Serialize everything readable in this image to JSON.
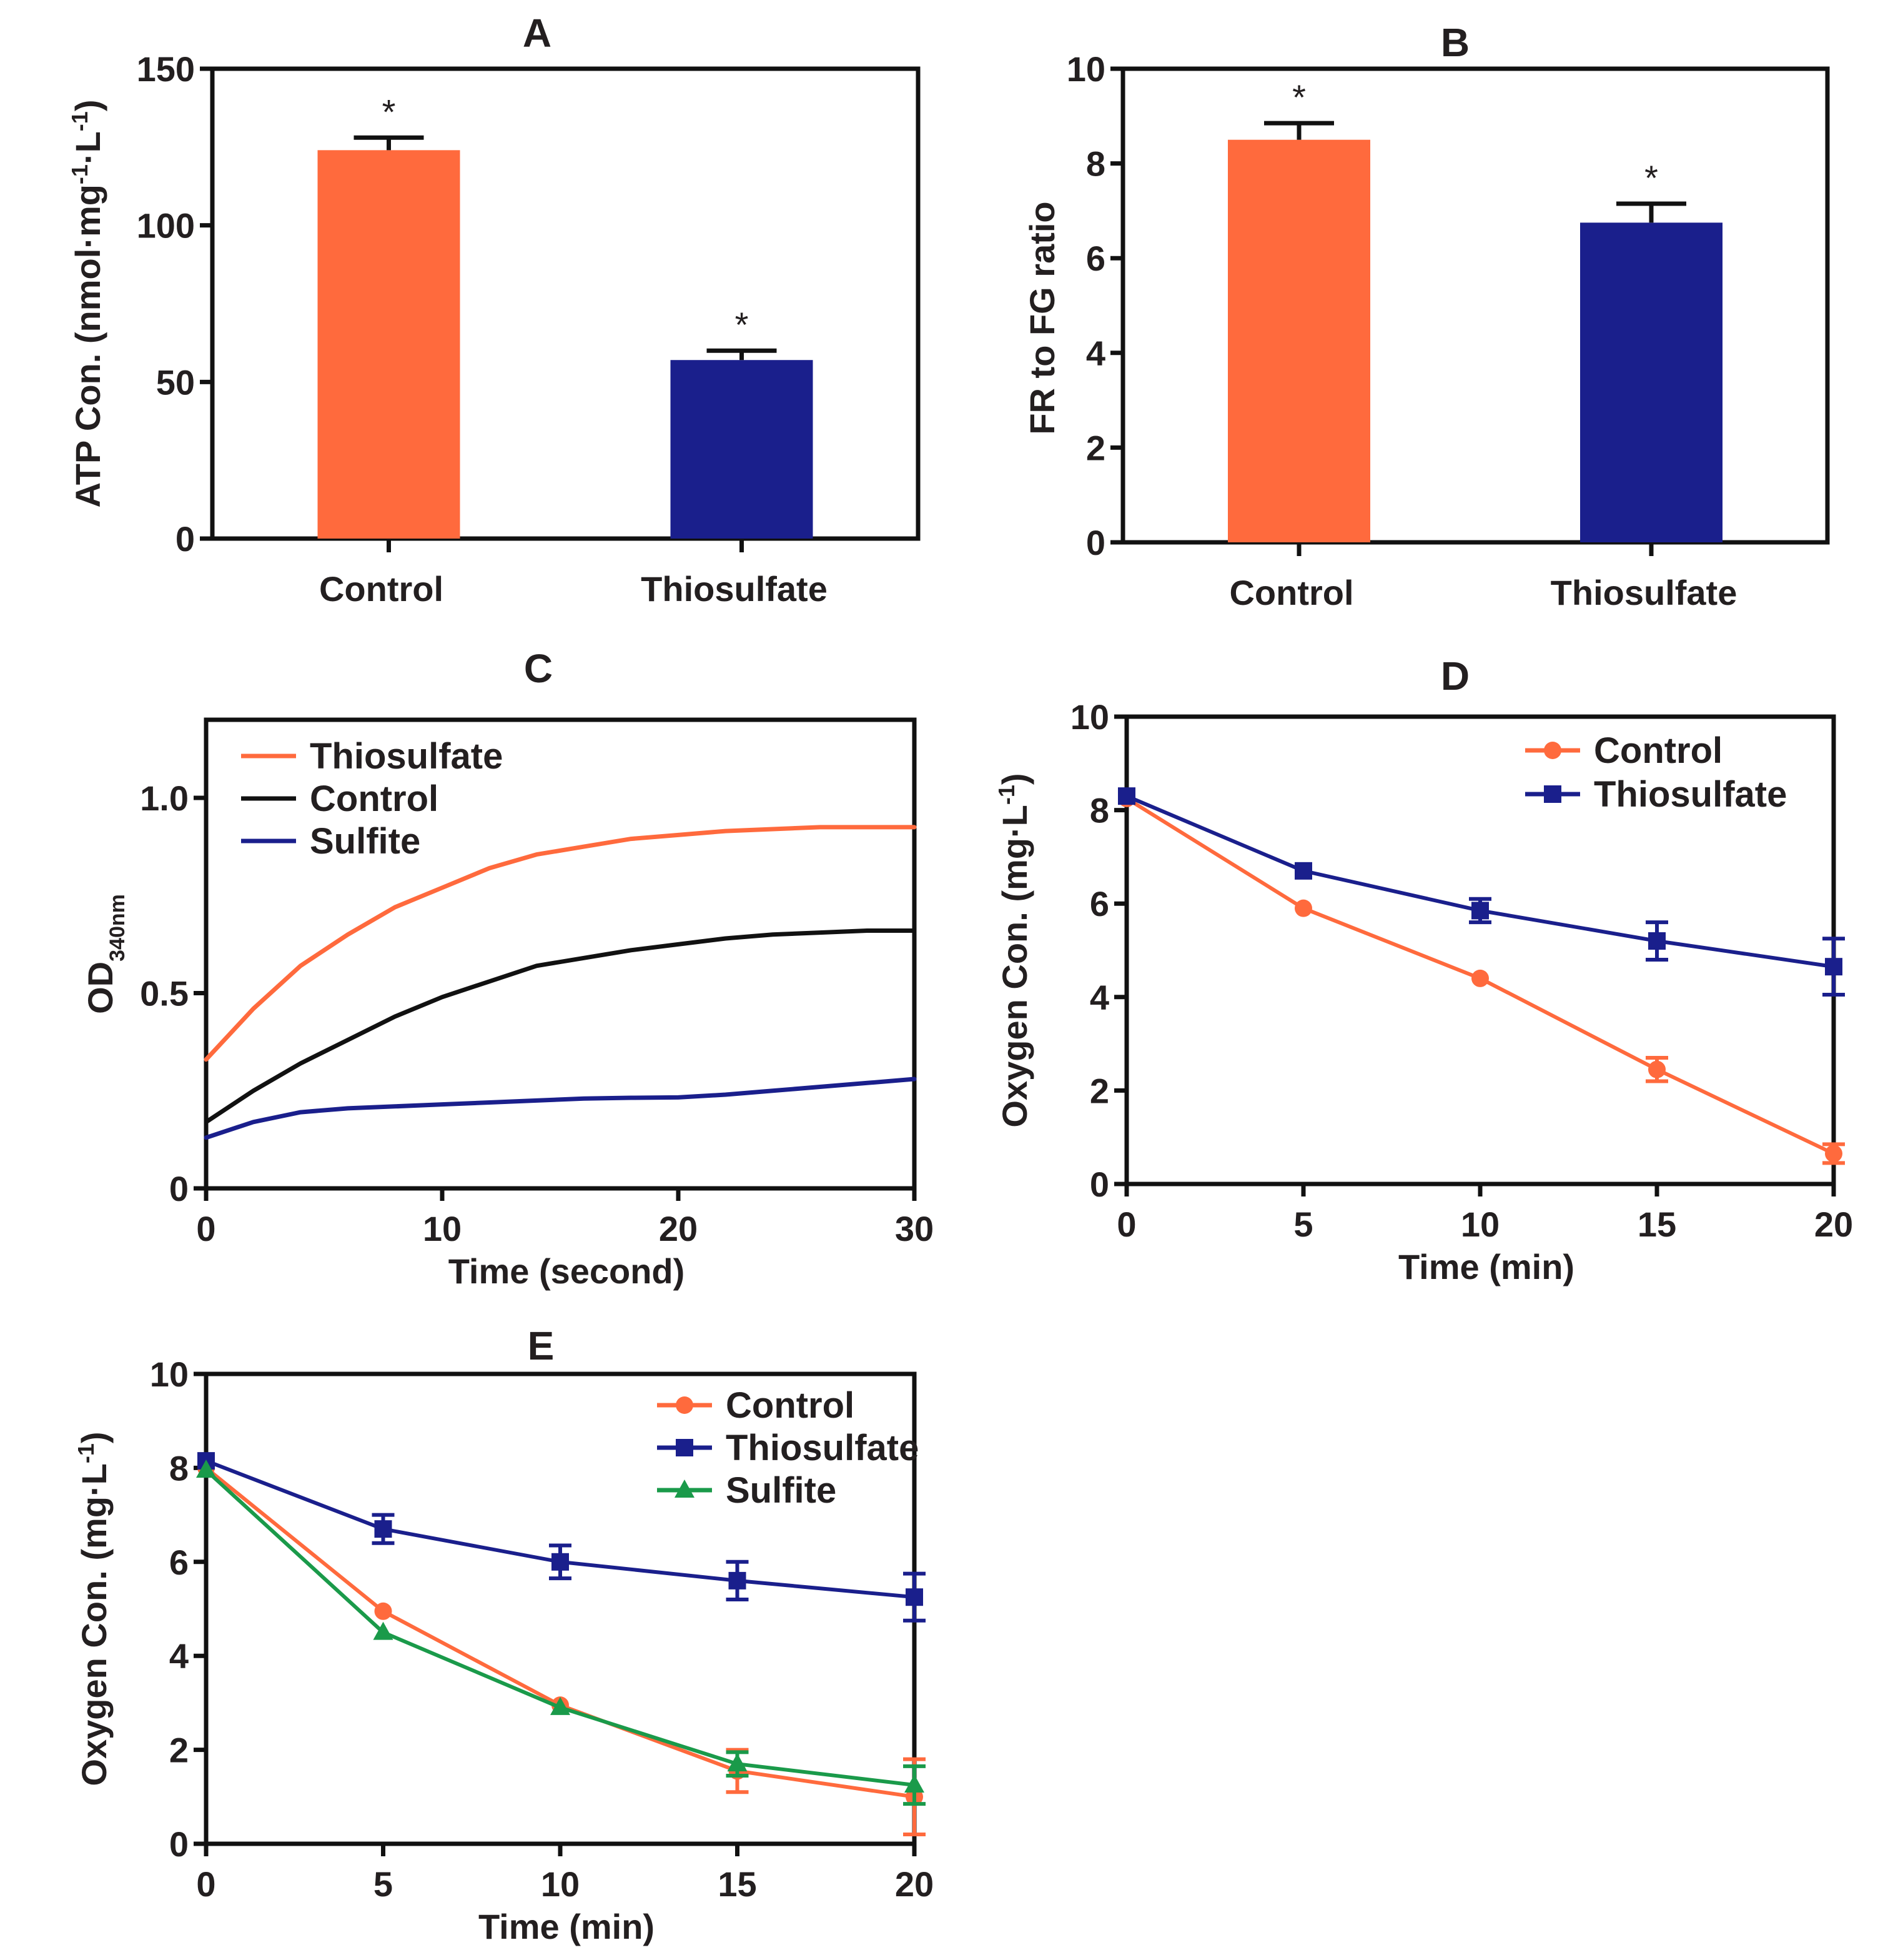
{
  "colors": {
    "control_orange": "#ff6a3d",
    "thiosulfate_blue": "#1a1f8c",
    "sulfite_green": "#1a9a4a",
    "control_black": "#111111",
    "axis": "#111111"
  },
  "chart_data": [
    {
      "id": "A",
      "type": "bar",
      "title": "A",
      "categories": [
        "Control",
        "Thiosulfate"
      ],
      "values": [
        124,
        57
      ],
      "errors": [
        4,
        3
      ],
      "significance": [
        "*",
        "*"
      ],
      "bar_colors": [
        "#ff6a3d",
        "#1a1f8c"
      ],
      "ylabel_parts": [
        "ATP Con. (nmol·mg",
        "-1",
        "·L",
        "-1",
        ")"
      ],
      "ylim": [
        0,
        150
      ],
      "yticks": [
        0,
        50,
        100,
        150
      ],
      "ytick_labels": [
        "0",
        "50",
        "100",
        "150"
      ]
    },
    {
      "id": "B",
      "type": "bar",
      "title": "B",
      "categories": [
        "Control",
        "Thiosulfate"
      ],
      "values": [
        8.5,
        6.75
      ],
      "errors": [
        0.35,
        0.4
      ],
      "significance": [
        "*",
        "*"
      ],
      "bar_colors": [
        "#ff6a3d",
        "#1a1f8c"
      ],
      "ylabel": "FR to FG ratio",
      "ylim": [
        0,
        10
      ],
      "yticks": [
        0,
        2,
        4,
        6,
        8,
        10
      ],
      "ytick_labels": [
        "0",
        "2",
        "4",
        "6",
        "8",
        "10"
      ]
    },
    {
      "id": "C",
      "type": "line",
      "title": "C",
      "xlabel": "Time (second)",
      "ylabel_main": "OD",
      "ylabel_sub": "340nm",
      "xlim": [
        0,
        30
      ],
      "ylim": [
        0,
        1.2
      ],
      "xticks": [
        0,
        10,
        20,
        30
      ],
      "xtick_labels": [
        "0",
        "10",
        "20",
        "30"
      ],
      "yticks": [
        0,
        0.5,
        1.0
      ],
      "ytick_labels": [
        "0",
        "0.5",
        "1.0"
      ],
      "x": [
        0,
        2,
        4,
        6,
        8,
        10,
        12,
        14,
        16,
        18,
        20,
        22,
        24,
        26,
        28,
        30
      ],
      "series": [
        {
          "name": "Thiosulfate",
          "color": "#ff6a3d",
          "values": [
            0.33,
            0.46,
            0.57,
            0.65,
            0.72,
            0.77,
            0.82,
            0.855,
            0.875,
            0.895,
            0.905,
            0.915,
            0.92,
            0.925,
            0.925,
            0.925
          ]
        },
        {
          "name": "Control",
          "color": "#111111",
          "values": [
            0.17,
            0.25,
            0.32,
            0.38,
            0.44,
            0.49,
            0.53,
            0.57,
            0.59,
            0.61,
            0.625,
            0.64,
            0.65,
            0.655,
            0.66,
            0.66
          ]
        },
        {
          "name": "Sulfite",
          "color": "#1a1f8c",
          "values": [
            0.13,
            0.17,
            0.195,
            0.205,
            0.21,
            0.215,
            0.22,
            0.225,
            0.23,
            0.232,
            0.233,
            0.24,
            0.25,
            0.26,
            0.27,
            0.28
          ]
        }
      ],
      "legend": [
        "Thiosulfate",
        "Control",
        "Sulfite"
      ],
      "legend_position": "top-left"
    },
    {
      "id": "D",
      "type": "line",
      "title": "D",
      "xlabel": "Time (min)",
      "ylabel_parts": [
        "Oxygen Con. (mg·L",
        "-1",
        ")"
      ],
      "xlim": [
        0,
        20
      ],
      "ylim": [
        0,
        10
      ],
      "xticks": [
        0,
        5,
        10,
        15,
        20
      ],
      "xtick_labels": [
        "0",
        "5",
        "10",
        "15",
        "20"
      ],
      "yticks": [
        0,
        2,
        4,
        6,
        8,
        10
      ],
      "ytick_labels": [
        "0",
        "2",
        "4",
        "6",
        "8",
        "10"
      ],
      "x": [
        0,
        5,
        10,
        15,
        20
      ],
      "series": [
        {
          "name": "Control",
          "color": "#ff6a3d",
          "marker": "circle",
          "values": [
            8.25,
            5.9,
            4.4,
            2.45,
            0.65
          ],
          "errors": [
            0.1,
            0.1,
            0.1,
            0.25,
            0.2
          ]
        },
        {
          "name": "Thiosulfate",
          "color": "#1a1f8c",
          "marker": "square",
          "values": [
            8.3,
            6.7,
            5.85,
            5.2,
            4.65
          ],
          "errors": [
            0.1,
            0.1,
            0.25,
            0.4,
            0.6
          ]
        }
      ],
      "legend": [
        "Control",
        "Thiosulfate"
      ],
      "legend_position": "top-right"
    },
    {
      "id": "E",
      "type": "line",
      "title": "E",
      "xlabel": "Time (min)",
      "ylabel_parts": [
        "Oxygen Con. (mg·L",
        "-1",
        ")"
      ],
      "xlim": [
        0,
        20
      ],
      "ylim": [
        0,
        10
      ],
      "xticks": [
        0,
        5,
        10,
        15,
        20
      ],
      "xtick_labels": [
        "0",
        "5",
        "10",
        "15",
        "20"
      ],
      "yticks": [
        0,
        2,
        4,
        6,
        8,
        10
      ],
      "ytick_labels": [
        "0",
        "2",
        "4",
        "6",
        "8",
        "10"
      ],
      "x": [
        0,
        5,
        10,
        15,
        20
      ],
      "series": [
        {
          "name": "Control",
          "color": "#ff6a3d",
          "marker": "circle",
          "values": [
            8.0,
            4.95,
            2.95,
            1.55,
            1.0
          ],
          "errors": [
            0.05,
            0.1,
            0.1,
            0.45,
            0.8
          ]
        },
        {
          "name": "Thiosulfate",
          "color": "#1a1f8c",
          "marker": "square",
          "values": [
            8.15,
            6.7,
            6.0,
            5.6,
            5.25
          ],
          "errors": [
            0.1,
            0.3,
            0.35,
            0.4,
            0.5
          ]
        },
        {
          "name": "Sulfite",
          "color": "#1a9a4a",
          "marker": "triangle",
          "values": [
            7.95,
            4.5,
            2.9,
            1.7,
            1.25
          ],
          "errors": [
            0.05,
            0.05,
            0.1,
            0.25,
            0.4
          ]
        }
      ],
      "legend": [
        "Control",
        "Thiosulfate",
        "Sulfite"
      ],
      "legend_position": "top-right"
    }
  ]
}
